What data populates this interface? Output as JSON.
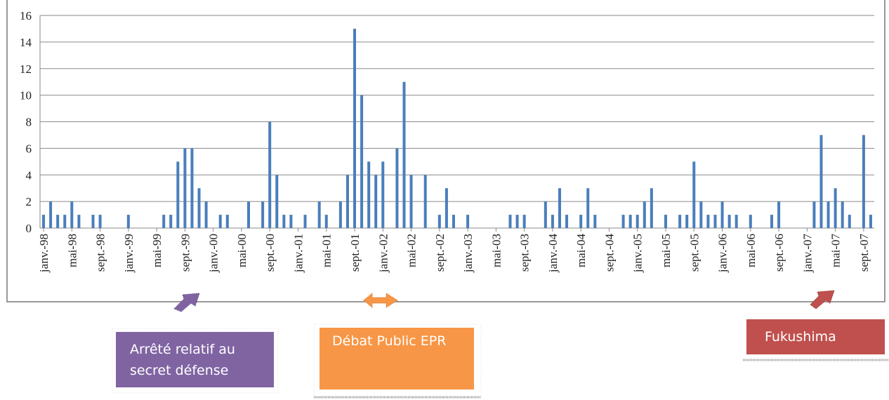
{
  "chart_data": {
    "type": "bar",
    "color": "#4a7ebb",
    "categories": [
      "janv.-98",
      null,
      null,
      null,
      "mai-98",
      null,
      null,
      null,
      "sept.-98",
      null,
      null,
      null,
      "janv.-99",
      null,
      null,
      null,
      "mai-99",
      null,
      null,
      null,
      "sept.-99",
      null,
      null,
      null,
      "janv.-00",
      null,
      null,
      null,
      "mai-00",
      null,
      null,
      null,
      "sept.-00",
      null,
      null,
      null,
      "janv.-01",
      null,
      null,
      null,
      "mai-01",
      null,
      null,
      null,
      "sept.-01",
      null,
      null,
      null,
      "janv.-02",
      null,
      null,
      null,
      "mai-02",
      null,
      null,
      null,
      "sept.-02",
      null,
      null,
      null,
      "janv.-03",
      null,
      null,
      null,
      "mai-03",
      null,
      null,
      null,
      "sept.-03",
      null,
      null,
      null,
      "janv.-04",
      null,
      null,
      null,
      "mai-04",
      null,
      null,
      null,
      "sept.-04",
      null,
      null,
      null,
      "janv.-05",
      null,
      null,
      null,
      "mai-05",
      null,
      null,
      null,
      "sept.-05",
      null,
      null,
      null,
      "janv.-06",
      null,
      null,
      null,
      "mai-06",
      null,
      null,
      null,
      "sept.-06",
      null,
      null,
      null,
      "janv.-07",
      null,
      null,
      null,
      "mai-07",
      null,
      null,
      null,
      "sept.-07",
      null
    ],
    "values": [
      1,
      2,
      1,
      1,
      2,
      1,
      0,
      1,
      1,
      0,
      0,
      0,
      1,
      0,
      0,
      0,
      0,
      1,
      1,
      5,
      6,
      6,
      3,
      2,
      0,
      1,
      1,
      0,
      0,
      2,
      0,
      2,
      8,
      4,
      1,
      1,
      0,
      1,
      0,
      2,
      1,
      0,
      2,
      4,
      15,
      10,
      5,
      4,
      5,
      0,
      6,
      11,
      4,
      0,
      4,
      0,
      1,
      3,
      1,
      0,
      1,
      0,
      0,
      0,
      0,
      0,
      1,
      1,
      1,
      0,
      0,
      2,
      1,
      3,
      1,
      0,
      1,
      3,
      1,
      0,
      0,
      0,
      1,
      1,
      1,
      2,
      3,
      0,
      1,
      0,
      1,
      1,
      5,
      2,
      1,
      1,
      2,
      1,
      1,
      0,
      1,
      0,
      0,
      1,
      2,
      0,
      0,
      0,
      0,
      2,
      7,
      2,
      3,
      2,
      1,
      0,
      7,
      1
    ],
    "ylim": [
      0,
      16
    ],
    "yticks": [
      0,
      2,
      4,
      6,
      8,
      10,
      12,
      14,
      16
    ],
    "grid": true,
    "annotations": [
      "Arrêté relatif au secret défense",
      "Débat Public EPR",
      "Fukushima"
    ]
  }
}
